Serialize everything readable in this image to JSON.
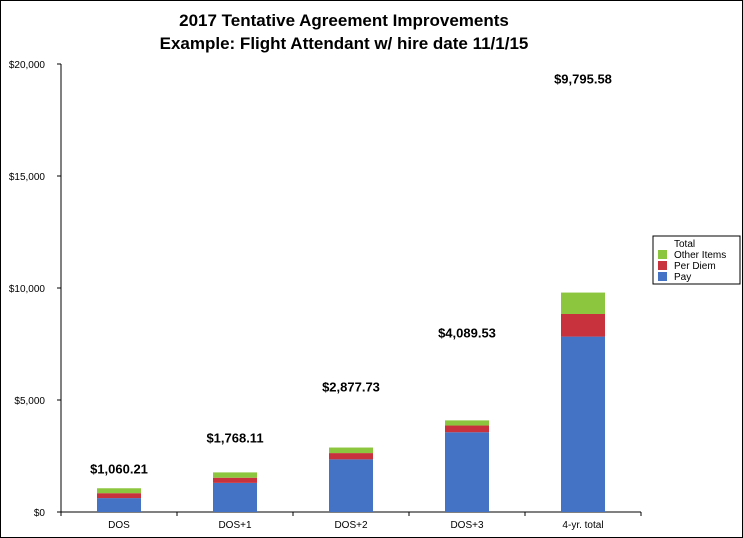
{
  "chart_data": {
    "type": "bar",
    "stacked": true,
    "title": "2017 Tentative Agreement Improvements",
    "subtitle": "Example: Flight Attendant w/ hire date 11/1/15",
    "categories": [
      "DOS",
      "DOS+1",
      "DOS+2",
      "DOS+3",
      "4-yr. total"
    ],
    "series": [
      {
        "name": "Pay",
        "color": "#4472c4",
        "values": [
          620,
          1300,
          2350,
          3560,
          7830
        ]
      },
      {
        "name": "Per Diem",
        "color": "#c8323c",
        "values": [
          220,
          230,
          280,
          300,
          1010
        ]
      },
      {
        "name": "Other Items",
        "color": "#8cc63f",
        "values": [
          220,
          238,
          248,
          230,
          956
        ]
      }
    ],
    "totals": [
      "$1,060.21",
      "$1,768.11",
      "$2,877.73",
      "$4,089.53",
      "$9,795.58"
    ],
    "legend_title": "Total",
    "y_ticks": [
      "$0",
      "$5,000",
      "$10,000",
      "$15,000",
      "$20,000"
    ],
    "ylim": [
      0,
      20000
    ],
    "legend_position": "right",
    "grid": false
  }
}
